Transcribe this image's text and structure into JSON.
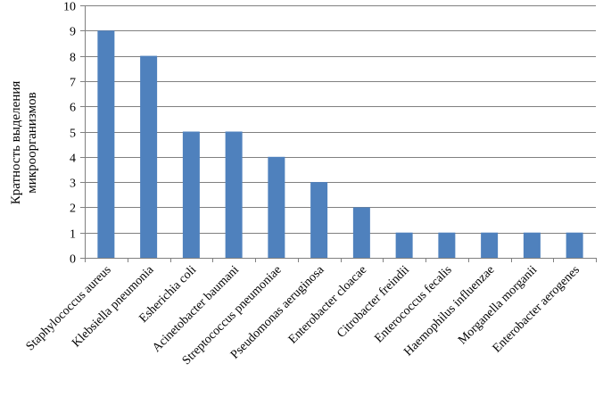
{
  "chart_data": {
    "type": "bar",
    "title": "",
    "xlabel": "",
    "ylabel": "Кратность выделения микроорганизмов",
    "ylabel_lines": [
      "Кратность выделения",
      "микроорганизмов"
    ],
    "ylim": [
      0,
      10
    ],
    "yticks": [
      0,
      1,
      2,
      3,
      4,
      5,
      6,
      7,
      8,
      9,
      10
    ],
    "grid": true,
    "legend": "none",
    "bar_color": "#4F81BD",
    "categories": [
      "Staphylococcus aureus",
      "Klebsiella pneumonia",
      "Esherichia coli",
      "Acinetobacter baumani",
      "Streptococcus pneumoniae",
      "Pseudomonas aeruginosa",
      "Enterobacter cloacae",
      "Citrobacter freindii",
      "Enterococcus fecalis",
      "Haemophilus influenzae",
      "Morganella morganii",
      "Enterobacter aerogenes"
    ],
    "values": [
      9,
      8,
      5,
      5,
      4,
      3,
      2,
      1,
      1,
      1,
      1,
      1
    ]
  }
}
